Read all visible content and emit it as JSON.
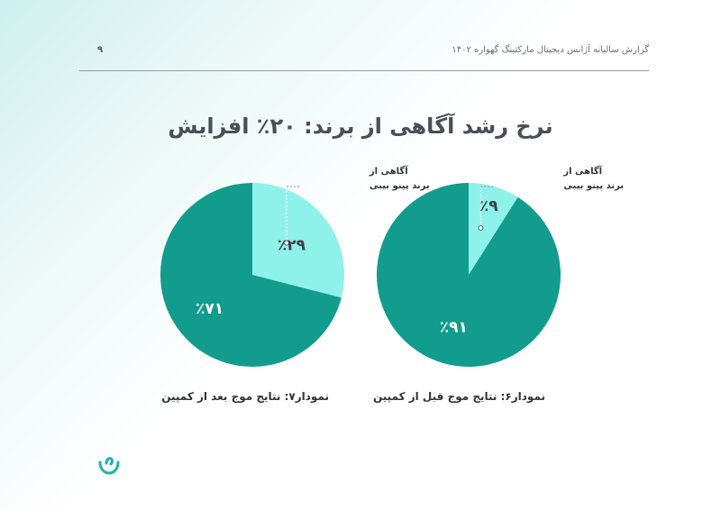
{
  "header": {
    "title": "گزارش سالیانه آژانس دیجیتال مارکتینگ گهواره ۱۴۰۲",
    "page_number": "۹"
  },
  "main_title": "نرخ رشد آگاهی از برند: ۲۰٪ افزایش",
  "colors": {
    "major": "#119c8e",
    "minor": "#8ef2ea",
    "label_text": "#3c3f4a",
    "white_text": "#ffffff",
    "accent": "#18b5a8"
  },
  "chart_data": [
    {
      "type": "pie",
      "caption": "نمودار۶: نتایج موج قبل از کمپین",
      "slices": [
        {
          "label": "آگاهی از برند پینو بیبی",
          "value": 9,
          "value_label": "٪۹"
        },
        {
          "label": "",
          "value": 91,
          "value_label": "٪۹۱"
        }
      ],
      "annotation": {
        "line1": "آگاهی از",
        "line2": "برند پینو بیبی"
      }
    },
    {
      "type": "pie",
      "caption": "نمودار۷: نتایج موج بعد از کمپین",
      "slices": [
        {
          "label": "آگاهی از برند پینو بیبی",
          "value": 29,
          "value_label": "٪۲۹"
        },
        {
          "label": "",
          "value": 71,
          "value_label": "٪۷۱"
        }
      ],
      "annotation": {
        "line1": "آگاهی از",
        "line2": "برند پینو بیبی"
      }
    }
  ],
  "logo": {
    "icon": "cradle-logo-icon"
  }
}
